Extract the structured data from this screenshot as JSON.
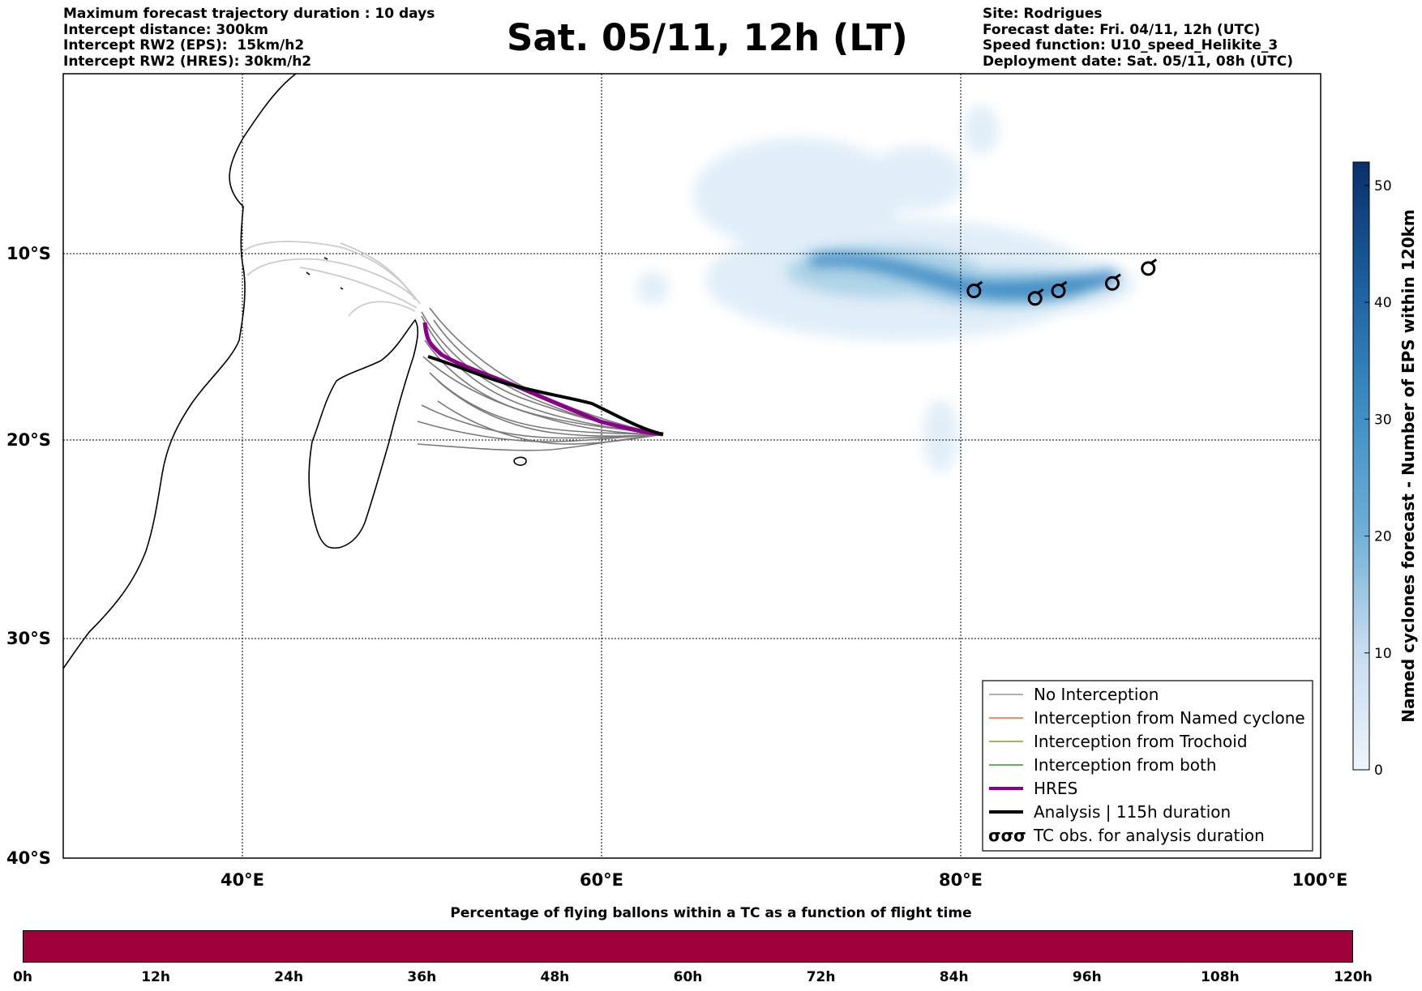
{
  "info_left": {
    "line1": "Maximum forecast trajectory duration : 10 days",
    "line2": "Intercept distance: 300km",
    "line3": "Intercept RW2 (EPS):  15km/h2",
    "line4": "Intercept RW2 (HRES): 30km/h2"
  },
  "title": "Sat. 05/11, 12h (LT)",
  "info_right": {
    "line1": "Site: Rodrigues",
    "line2": "Forecast date: Fri. 04/11, 12h (UTC)",
    "line3": "Speed function: U10_speed_Helikite_3",
    "line4": "Deployment date: Sat. 05/11, 08h (UTC)"
  },
  "map": {
    "lat_labels": [
      "10°S",
      "20°S",
      "30°S",
      "40°S"
    ],
    "lon_labels": [
      "40°E",
      "60°E",
      "80°E",
      "100°E"
    ],
    "lat_values": [
      -10,
      -20,
      -30,
      -40
    ],
    "lon_values": [
      40,
      60,
      80,
      100
    ],
    "extent": {
      "lon_min": 30,
      "lon_max": 100,
      "lat_min": -40,
      "lat_max": -1
    },
    "colors": {
      "no_interception": "#777777",
      "light_trajectory": "#cccccc",
      "hres": "#8b008b",
      "analysis": "#000000",
      "density": "#2f7fc0"
    }
  },
  "legend": {
    "items": [
      {
        "label": "No Interception",
        "color": "#808080",
        "style": "thin"
      },
      {
        "label": "Interception from Named cyclone",
        "color": "#ff4500",
        "style": "thin"
      },
      {
        "label": "Interception from Trochoid",
        "color": "#808000",
        "style": "thin"
      },
      {
        "label": "Interception from both",
        "color": "#008000",
        "style": "thin"
      },
      {
        "label": "HRES",
        "color": "#8b008b",
        "style": "thick"
      },
      {
        "label": "Analysis | 115h duration",
        "color": "#000000",
        "style": "thick"
      },
      {
        "label": "TC obs. for analysis duration",
        "color": "#000000",
        "style": "symbol",
        "symbol_text": "σσσ"
      }
    ]
  },
  "colorbar": {
    "title": "Named cyclones forecast - Number of EPS within 120km",
    "ticks": [
      "0",
      "10",
      "20",
      "30",
      "40",
      "50"
    ],
    "tick_values": [
      0,
      10,
      20,
      30,
      40,
      50
    ],
    "max": 52,
    "color_low": "#deebf7",
    "color_high": "#08306b"
  },
  "tc_obs": [
    {
      "lon": 80.7,
      "lat": -12.0
    },
    {
      "lon": 84.1,
      "lat": -12.4
    },
    {
      "lon": 85.4,
      "lat": -12.0
    },
    {
      "lon": 88.4,
      "lat": -11.6
    },
    {
      "lon": 90.4,
      "lat": -10.8
    }
  ],
  "time_bar": {
    "title": "Percentage of flying ballons within a TC as a function of flight time",
    "color": "#a0003c",
    "ticks": [
      "0h",
      "12h",
      "24h",
      "36h",
      "48h",
      "60h",
      "72h",
      "84h",
      "96h",
      "108h",
      "120h"
    ]
  }
}
